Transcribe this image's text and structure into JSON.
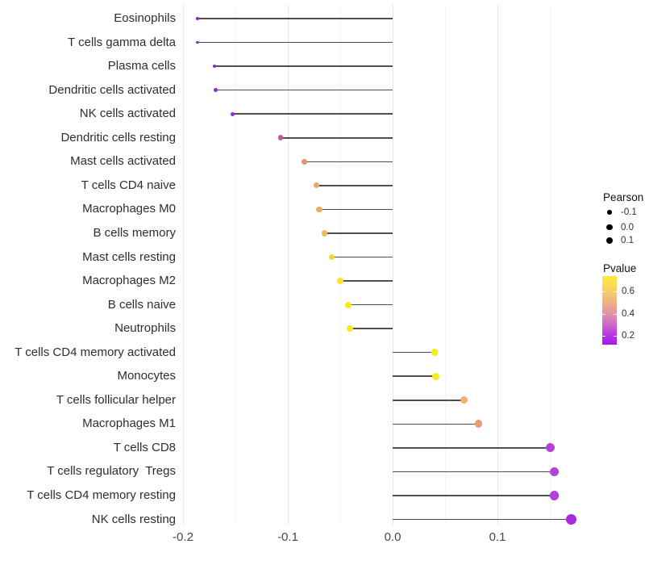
{
  "chart_data": {
    "type": "lollipop",
    "title": "",
    "xlabel": "",
    "ylabel": "",
    "grid": "major and minor vertical gridlines, white background",
    "x_axis": {
      "ticks": [
        {
          "label": "-0.2",
          "value": -0.2
        },
        {
          "label": "-0.1",
          "value": -0.1
        },
        {
          "label": "0.0",
          "value": 0.0
        },
        {
          "label": "0.1",
          "value": 0.1
        }
      ],
      "minor_tick_values": [
        -0.15,
        -0.05,
        0.05,
        0.15
      ],
      "range": [
        -0.203,
        0.187
      ],
      "baseline": 0.0
    },
    "rows": [
      {
        "label": "Eosinophils",
        "pearson": -0.186,
        "pvalue_approx": 0.1,
        "color": "#8d2acf",
        "r": 1.8
      },
      {
        "label": "T cells gamma delta",
        "pearson": -0.186,
        "pvalue_approx": 0.1,
        "color": "#8d2acf",
        "r": 1.8
      },
      {
        "label": "Plasma cells",
        "pearson": -0.17,
        "pvalue_approx": 0.12,
        "color": "#9128d3",
        "r": 2.3
      },
      {
        "label": "Dendritic cells activated",
        "pearson": -0.169,
        "pvalue_approx": 0.12,
        "color": "#9128d3",
        "r": 2.4
      },
      {
        "label": "NK cells activated",
        "pearson": -0.153,
        "pvalue_approx": 0.15,
        "color": "#982bd6",
        "r": 2.6
      },
      {
        "label": "Dendritic cells resting",
        "pearson": -0.107,
        "pvalue_approx": 0.35,
        "color": "#c3589f",
        "r": 3.3
      },
      {
        "label": "Mast cells activated",
        "pearson": -0.084,
        "pvalue_approx": 0.45,
        "color": "#e69078",
        "r": 3.5
      },
      {
        "label": "T cells CD4 naive",
        "pearson": -0.073,
        "pvalue_approx": 0.5,
        "color": "#eca869",
        "r": 3.6
      },
      {
        "label": "Macrophages M0",
        "pearson": -0.07,
        "pvalue_approx": 0.5,
        "color": "#edac63",
        "r": 3.6
      },
      {
        "label": "B cells memory",
        "pearson": -0.065,
        "pvalue_approx": 0.55,
        "color": "#f0ba55",
        "r": 3.7
      },
      {
        "label": "Mast cells resting",
        "pearson": -0.058,
        "pvalue_approx": 0.6,
        "color": "#f5d53b",
        "r": 3.9
      },
      {
        "label": "Macrophages M2",
        "pearson": -0.05,
        "pvalue_approx": 0.63,
        "color": "#f8e22b",
        "r": 4.0
      },
      {
        "label": "B cells naive",
        "pearson": -0.042,
        "pvalue_approx": 0.65,
        "color": "#f9e822",
        "r": 4.1
      },
      {
        "label": "Neutrophils",
        "pearson": -0.041,
        "pvalue_approx": 0.65,
        "color": "#f9e822",
        "r": 4.1
      },
      {
        "label": "T cells CD4 memory activated",
        "pearson": 0.04,
        "pvalue_approx": 0.68,
        "color": "#faeb1e",
        "r": 4.4
      },
      {
        "label": "Monocytes",
        "pearson": 0.041,
        "pvalue_approx": 0.68,
        "color": "#faeb1e",
        "r": 4.4
      },
      {
        "label": "T cells follicular helper",
        "pearson": 0.068,
        "pvalue_approx": 0.52,
        "color": "#efb266",
        "r": 4.7
      },
      {
        "label": "Macrophages M1",
        "pearson": 0.082,
        "pvalue_approx": 0.45,
        "color": "#e89b7b",
        "r": 4.9
      },
      {
        "label": "T cells CD8",
        "pearson": 0.15,
        "pvalue_approx": 0.18,
        "color": "#b342da",
        "r": 5.5
      },
      {
        "label": "T cells regulatory  Tregs",
        "pearson": 0.154,
        "pvalue_approx": 0.18,
        "color": "#b342da",
        "r": 5.6
      },
      {
        "label": "T cells CD4 memory resting",
        "pearson": 0.154,
        "pvalue_approx": 0.18,
        "color": "#b342da",
        "r": 5.6
      },
      {
        "label": "NK cells resting",
        "pearson": 0.17,
        "pvalue_approx": 0.12,
        "color": "#a52be0",
        "r": 6.5
      }
    ],
    "legend_size": {
      "title": "Pearson",
      "position": "right, upper block",
      "dot_color": "#000000",
      "entries": [
        {
          "label": "-0.1",
          "r": 2.8
        },
        {
          "label": "0.0",
          "r": 3.7
        },
        {
          "label": "0.1",
          "r": 4.4
        }
      ]
    },
    "legend_color": {
      "title": "Pvalue",
      "position": "right, lower block",
      "ticks": [
        {
          "label": "0.6",
          "frac_from_top": 0.225
        },
        {
          "label": "0.4",
          "frac_from_top": 0.55
        },
        {
          "label": "0.2",
          "frac_from_top": 0.87
        }
      ],
      "gradient_top_to_bottom": [
        "#faec3c",
        "#f7d55e",
        "#efae88",
        "#e193a8",
        "#cf6cc6",
        "#b93ae2",
        "#a617ee"
      ],
      "range_top_to_bottom": [
        0.74,
        0.1
      ]
    }
  }
}
